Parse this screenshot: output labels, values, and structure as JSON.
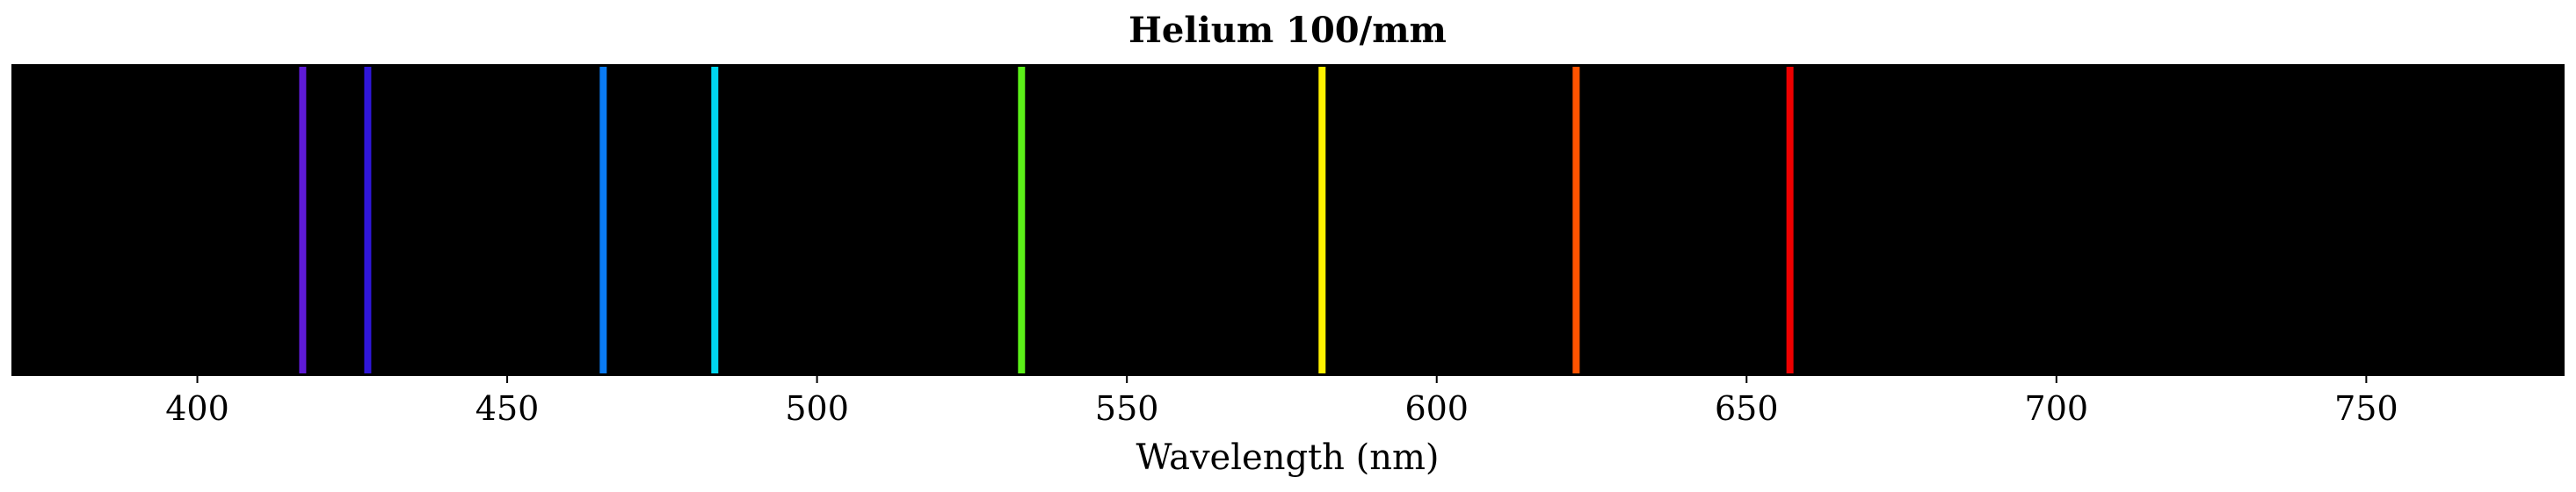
{
  "chart_data": {
    "type": "spectrum",
    "title": "Helium 100/mm",
    "xlabel": "Wavelength (nm)",
    "ylabel": "",
    "xlim": [
      370,
      782
    ],
    "background_color": "#000000",
    "grid": false,
    "legend": "none",
    "xticks": [
      400,
      450,
      500,
      550,
      600,
      650,
      700,
      750
    ],
    "xtick_labels": [
      "400",
      "450",
      "500",
      "550",
      "600",
      "650",
      "700",
      "750"
    ],
    "lines": [
      {
        "wavelength": 417,
        "color": "#5e1ad6"
      },
      {
        "wavelength": 427.5,
        "color": "#2f16d8"
      },
      {
        "wavelength": 465.5,
        "color": "#0a7bf4"
      },
      {
        "wavelength": 483.5,
        "color": "#00d6ef"
      },
      {
        "wavelength": 533,
        "color": "#5bf018"
      },
      {
        "wavelength": 581.5,
        "color": "#fff200"
      },
      {
        "wavelength": 622.5,
        "color": "#ff5300"
      },
      {
        "wavelength": 657,
        "color": "#ee0000"
      }
    ]
  }
}
